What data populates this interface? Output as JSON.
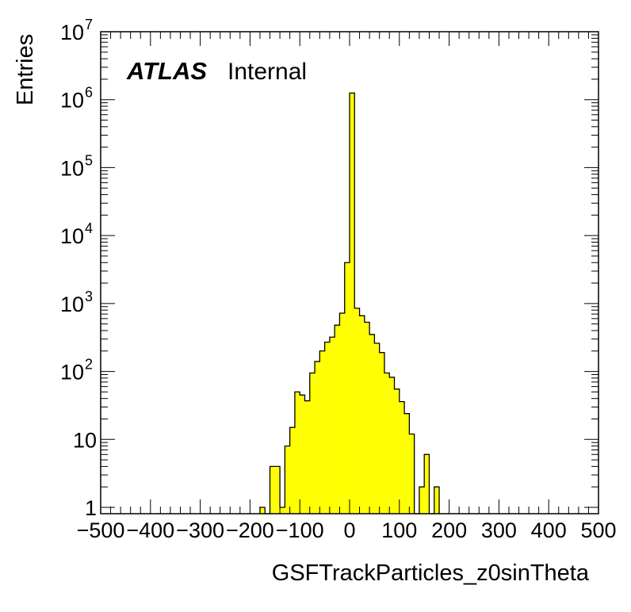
{
  "chart_data": {
    "type": "histogram",
    "xlabel": "GSFTrackParticles_z0sinTheta",
    "ylabel": "Entries",
    "xlim": [
      -500,
      500
    ],
    "ylim": [
      0.8,
      10000000
    ],
    "y_log_scale": true,
    "x_ticks": [
      "−500",
      "−400",
      "−300",
      "−200",
      "−100",
      "0",
      "100",
      "200",
      "300",
      "400",
      "500"
    ],
    "y_ticks": [
      {
        "base": "1",
        "exp": ""
      },
      {
        "base": "10",
        "exp": ""
      },
      {
        "base": "10",
        "exp": "2"
      },
      {
        "base": "10",
        "exp": "3"
      },
      {
        "base": "10",
        "exp": "4"
      },
      {
        "base": "10",
        "exp": "5"
      },
      {
        "base": "10",
        "exp": "6"
      },
      {
        "base": "10",
        "exp": "7"
      }
    ],
    "bin_width": 10,
    "fill_color": "#ffff00",
    "line_color": "#000000",
    "grid": false,
    "atlas_label": "ATLAS",
    "atlas_sublabel": "Internal",
    "bins": [
      {
        "x_low": -180,
        "x_high": -170,
        "count": 1
      },
      {
        "x_low": -170,
        "x_high": -160,
        "count": 0
      },
      {
        "x_low": -160,
        "x_high": -150,
        "count": 4
      },
      {
        "x_low": -150,
        "x_high": -140,
        "count": 4
      },
      {
        "x_low": -140,
        "x_high": -130,
        "count": 1
      },
      {
        "x_low": -130,
        "x_high": -120,
        "count": 8
      },
      {
        "x_low": -120,
        "x_high": -110,
        "count": 15
      },
      {
        "x_low": -110,
        "x_high": -100,
        "count": 50
      },
      {
        "x_low": -100,
        "x_high": -90,
        "count": 45
      },
      {
        "x_low": -90,
        "x_high": -80,
        "count": 37
      },
      {
        "x_low": -80,
        "x_high": -70,
        "count": 95
      },
      {
        "x_low": -70,
        "x_high": -60,
        "count": 140
      },
      {
        "x_low": -60,
        "x_high": -50,
        "count": 200
      },
      {
        "x_low": -50,
        "x_high": -40,
        "count": 270
      },
      {
        "x_low": -40,
        "x_high": -30,
        "count": 320
      },
      {
        "x_low": -30,
        "x_high": -20,
        "count": 480
      },
      {
        "x_low": -20,
        "x_high": -10,
        "count": 720
      },
      {
        "x_low": -10,
        "x_high": 0,
        "count": 4000
      },
      {
        "x_low": 0,
        "x_high": 10,
        "count": 1250000
      },
      {
        "x_low": 10,
        "x_high": 20,
        "count": 850
      },
      {
        "x_low": 20,
        "x_high": 30,
        "count": 660
      },
      {
        "x_low": 30,
        "x_high": 40,
        "count": 530
      },
      {
        "x_low": 40,
        "x_high": 50,
        "count": 350
      },
      {
        "x_low": 50,
        "x_high": 60,
        "count": 260
      },
      {
        "x_low": 60,
        "x_high": 70,
        "count": 190
      },
      {
        "x_low": 70,
        "x_high": 80,
        "count": 95
      },
      {
        "x_low": 80,
        "x_high": 90,
        "count": 82
      },
      {
        "x_low": 90,
        "x_high": 100,
        "count": 55
      },
      {
        "x_low": 100,
        "x_high": 110,
        "count": 36
      },
      {
        "x_low": 110,
        "x_high": 120,
        "count": 24
      },
      {
        "x_low": 120,
        "x_high": 130,
        "count": 12
      },
      {
        "x_low": 130,
        "x_high": 140,
        "count": 0
      },
      {
        "x_low": 140,
        "x_high": 150,
        "count": 2
      },
      {
        "x_low": 150,
        "x_high": 160,
        "count": 6
      },
      {
        "x_low": 160,
        "x_high": 170,
        "count": 0
      },
      {
        "x_low": 170,
        "x_high": 180,
        "count": 2
      }
    ]
  }
}
